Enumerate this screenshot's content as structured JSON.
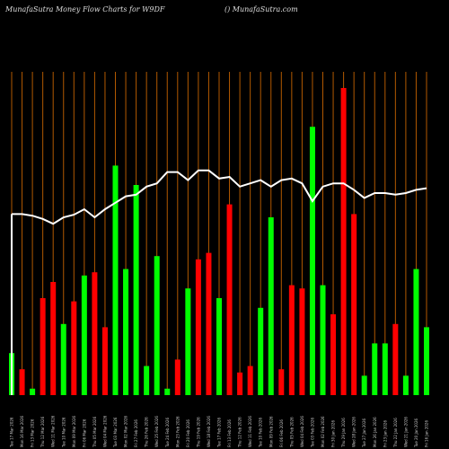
{
  "header": {
    "title": "MunafaSutra  Money Flow  Charts for W9DF",
    "site": "() MunafaSutra.com"
  },
  "colors": {
    "background": "#000000",
    "gridline": "#b25900",
    "up": "#00ff00",
    "down": "#ff0000",
    "line": "#ffffff"
  },
  "chart_data": {
    "type": "bar",
    "title": "MunafaSutra  Money Flow  Charts for W9DF",
    "xlabel": "",
    "ylabel": "",
    "ylim": [
      0,
      100
    ],
    "grid": "vertical",
    "categories": [
      "Tue 17 Mar 2026",
      "Mon 16 Mar 2026",
      "Fri 13 Mar 2026",
      "Thu 12 Mar 2026",
      "Wed 11 Mar 2026",
      "Tue 10 Mar 2026",
      "Mon 09 Mar 2026",
      "Fri 06 Mar 2026",
      "Thu 05 Mar 2026",
      "Wed 04 Mar 2026",
      "Tue 03 Mar 2026",
      "Mon 02 Mar 2026",
      "Fri 27 Feb 2026",
      "Thu 26 Feb 2026",
      "Wed 25 Feb 2026",
      "Tue 24 Feb 2026",
      "Mon 23 Feb 2026",
      "Fri 20 Feb 2026",
      "Thu 19 Feb 2026",
      "Wed 18 Feb 2026",
      "Tue 17 Feb 2026",
      "Fri 13 Feb 2026",
      "Thu 12 Feb 2026",
      "Wed 11 Feb 2026",
      "Tue 10 Feb 2026",
      "Mon 09 Feb 2026",
      "Fri 06 Feb 2026",
      "Thu 05 Feb 2026",
      "Wed 04 Feb 2026",
      "Tue 03 Feb 2026",
      "Mon 02 Feb 2026",
      "Fri 30 Jan 2026",
      "Thu 29 Jan 2026",
      "Wed 28 Jan 2026",
      "Tue 27 Jan 2026",
      "Mon 26 Jan 2026",
      "Fri 23 Jan 2026",
      "Thu 22 Jan 2026",
      "Wed 21 Jan 2026",
      "Tue 20 Jan 2026",
      "Fri 16 Jan 2026"
    ],
    "series": [
      {
        "kind": "bar",
        "values": [
          13,
          8,
          2,
          30,
          35,
          22,
          29,
          37,
          38,
          21,
          71,
          39,
          65,
          9,
          43,
          2,
          11,
          33,
          42,
          44,
          30,
          59,
          7,
          9,
          27,
          55,
          8,
          34,
          33,
          83,
          34,
          25,
          95,
          56,
          6,
          16,
          16,
          22,
          6,
          39,
          21
        ],
        "direction": [
          "up",
          "down",
          "up",
          "down",
          "down",
          "up",
          "down",
          "up",
          "down",
          "down",
          "up",
          "up",
          "up",
          "up",
          "up",
          "up",
          "down",
          "up",
          "down",
          "down",
          "up",
          "down",
          "down",
          "down",
          "up",
          "up",
          "down",
          "down",
          "down",
          "up",
          "up",
          "down",
          "down",
          "down",
          "up",
          "up",
          "up",
          "down",
          "up",
          "up",
          "up"
        ]
      },
      {
        "kind": "line",
        "values": [
          56,
          56,
          55.5,
          54.5,
          53,
          55,
          55.8,
          57.5,
          55,
          57.5,
          59.5,
          61.5,
          62,
          64.5,
          65.5,
          69,
          69,
          66.5,
          69.5,
          69.5,
          67,
          67.5,
          64.5,
          65.5,
          66.5,
          64.5,
          66.5,
          67,
          65.5,
          60,
          64.5,
          65.5,
          65.5,
          63.5,
          61,
          62.5,
          62.5,
          62,
          62.5,
          63.5,
          64
        ]
      }
    ]
  }
}
